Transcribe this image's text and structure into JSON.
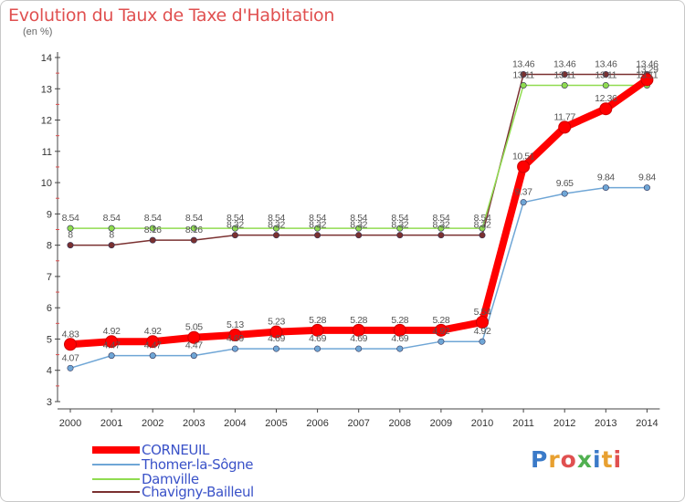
{
  "title": "Evolution du Taux de Taxe d'Habitation",
  "subtitle": "(en %)",
  "logo": {
    "text": "Proxiti",
    "colors": [
      "#3a7ac8",
      "#e8a030",
      "#e05050",
      "#50b050",
      "#3a7ac8",
      "#e8a030",
      "#e05050"
    ]
  },
  "chart_data": {
    "type": "line",
    "x": [
      "2000",
      "2001",
      "2002",
      "2003",
      "2004",
      "2005",
      "2006",
      "2007",
      "2008",
      "2009",
      "2010",
      "2011",
      "2012",
      "2013",
      "2014"
    ],
    "ylim": [
      3,
      14
    ],
    "yticks": [
      "3",
      "4",
      "5",
      "6",
      "7",
      "8",
      "9",
      "10",
      "11",
      "12",
      "13",
      "14"
    ],
    "grid": false,
    "legend": "bottom-left",
    "series": [
      {
        "name": "CORNEUIL",
        "color": "#ff0000",
        "values": [
          4.83,
          4.92,
          4.92,
          5.05,
          5.13,
          5.23,
          5.28,
          5.28,
          5.28,
          5.28,
          5.54,
          10.51,
          11.77,
          12.36,
          13.29
        ],
        "labels": [
          "4.83",
          "4.92",
          "4.92",
          "5.05",
          "5.13",
          "5.23",
          "5.28",
          "5.28",
          "5.28",
          "5.28",
          "5.54",
          "10.51",
          "11.77",
          "12.36",
          "13.29"
        ]
      },
      {
        "name": "Thomer-la-Sôgne",
        "color": "#6fa6d6",
        "values": [
          4.07,
          4.47,
          4.47,
          4.47,
          4.69,
          4.69,
          4.69,
          4.69,
          4.69,
          4.92,
          4.92,
          9.37,
          9.65,
          9.84,
          9.84
        ],
        "labels": [
          "4.07",
          "4.47",
          "4.47",
          "4.47",
          "4.69",
          "4.69",
          "4.69",
          "4.69",
          "4.69",
          "4.92",
          "4.92",
          "9.37",
          "9.65",
          "9.84",
          "9.84"
        ]
      },
      {
        "name": "Damville",
        "color": "#90dc50",
        "values": [
          8.54,
          8.54,
          8.54,
          8.54,
          8.54,
          8.54,
          8.54,
          8.54,
          8.54,
          8.54,
          8.54,
          13.11,
          13.11,
          13.11,
          13.11
        ],
        "labels": [
          "8.54",
          "8.54",
          "8.54",
          "8.54",
          "8.54",
          "8.54",
          "8.54",
          "8.54",
          "8.54",
          "8.54",
          "8.54",
          "13.11",
          "13.11",
          "13.11",
          "13.11"
        ]
      },
      {
        "name": "Chavigny-Bailleul",
        "color": "#7a3030",
        "values": [
          8,
          8,
          8.16,
          8.16,
          8.32,
          8.32,
          8.32,
          8.32,
          8.32,
          8.32,
          8.32,
          13.46,
          13.46,
          13.46,
          13.46
        ],
        "labels": [
          "8",
          "8",
          "8.16",
          "8.16",
          "8.32",
          "8.32",
          "8.32",
          "8.32",
          "8.32",
          "8.32",
          "8.32",
          "13.46",
          "13.46",
          "13.46",
          "13.46"
        ]
      }
    ]
  }
}
